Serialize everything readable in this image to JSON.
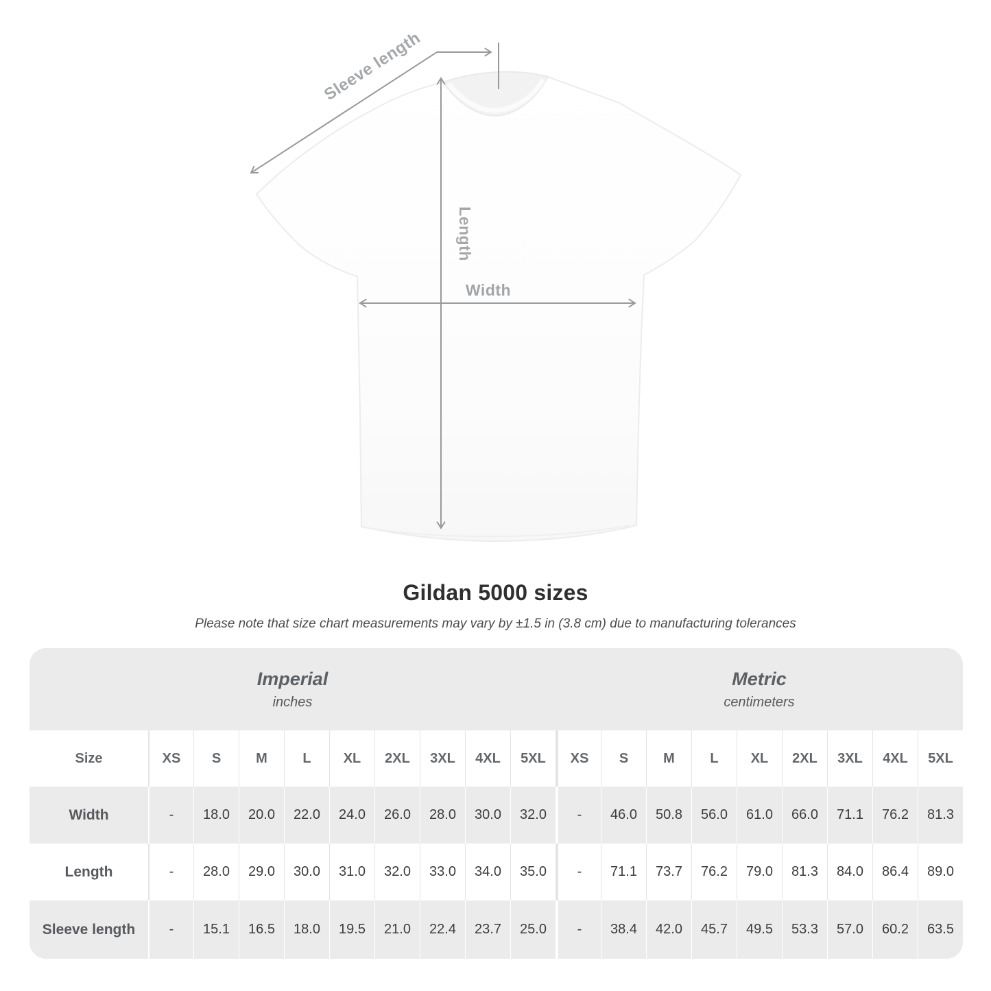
{
  "page": {
    "title": "Gildan 5000 sizes",
    "note": "Please note that size chart measurements may vary by ±1.5 in (3.8 cm) due to manufacturing tolerances"
  },
  "diagram": {
    "sleeve_label": "Sleeve length",
    "length_label": "Length",
    "width_label": "Width",
    "line_color": "#97999b",
    "label_color": "#a5a8ab",
    "shirt_color": "#ffffff"
  },
  "table": {
    "size_label": "Size",
    "sections": [
      {
        "title": "Imperial",
        "subtitle": "inches"
      },
      {
        "title": "Metric",
        "subtitle": "centimeters"
      }
    ],
    "columns": [
      "XS",
      "S",
      "M",
      "L",
      "XL",
      "2XL",
      "3XL",
      "4XL",
      "5XL",
      "XS",
      "S",
      "M",
      "L",
      "XL",
      "2XL",
      "3XL",
      "4XL",
      "5XL"
    ],
    "rows": [
      {
        "label": "Width",
        "values": [
          "-",
          "18.0",
          "20.0",
          "22.0",
          "24.0",
          "26.0",
          "28.0",
          "30.0",
          "32.0",
          "-",
          "46.0",
          "50.8",
          "56.0",
          "61.0",
          "66.0",
          "71.1",
          "76.2",
          "81.3"
        ]
      },
      {
        "label": "Length",
        "values": [
          "-",
          "28.0",
          "29.0",
          "30.0",
          "31.0",
          "32.0",
          "33.0",
          "34.0",
          "35.0",
          "-",
          "71.1",
          "73.7",
          "76.2",
          "79.0",
          "81.3",
          "84.0",
          "86.4",
          "89.0"
        ]
      },
      {
        "label": "Sleeve length",
        "values": [
          "-",
          "15.1",
          "16.5",
          "18.0",
          "19.5",
          "21.0",
          "22.4",
          "23.7",
          "25.0",
          "-",
          "38.4",
          "42.0",
          "45.7",
          "49.5",
          "53.3",
          "57.0",
          "60.2",
          "63.5"
        ]
      }
    ]
  }
}
